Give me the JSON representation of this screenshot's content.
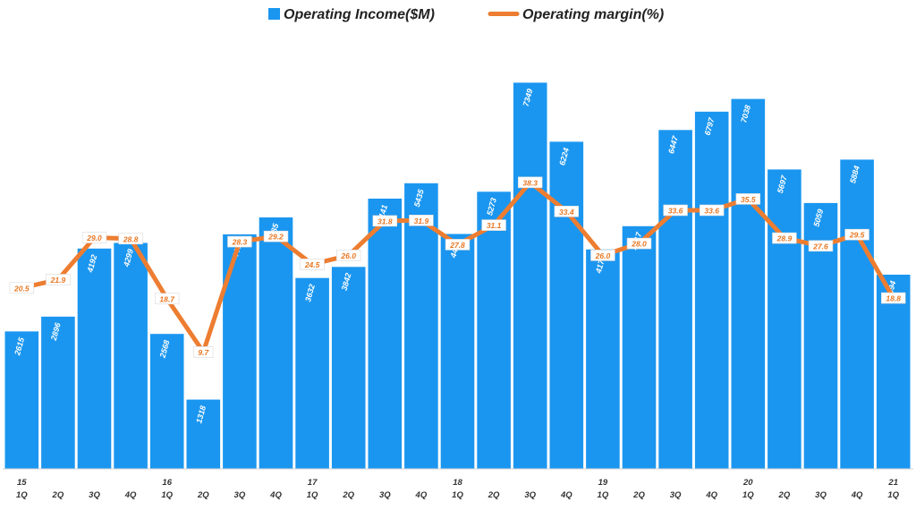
{
  "chart_data": {
    "type": "bar",
    "categories": [
      "1Q",
      "2Q",
      "3Q",
      "4Q",
      "1Q",
      "2Q",
      "3Q",
      "4Q",
      "1Q",
      "2Q",
      "3Q",
      "4Q",
      "1Q",
      "2Q",
      "3Q",
      "4Q",
      "1Q",
      "2Q",
      "3Q",
      "4Q",
      "1Q",
      "2Q",
      "3Q",
      "4Q",
      "1Q"
    ],
    "year_labels": [
      "15",
      "",
      "",
      "",
      "16",
      "",
      "",
      "",
      "17",
      "",
      "",
      "",
      "18",
      "",
      "",
      "",
      "19",
      "",
      "",
      "",
      "20",
      "",
      "",
      "",
      "21"
    ],
    "series": [
      {
        "name": "Operating Income($M)",
        "type": "bar",
        "color": "#1a96f0",
        "values": [
          2615,
          2896,
          4192,
          4299,
          2568,
          1318,
          4462,
          4785,
          3632,
          3842,
          5141,
          5435,
          4470,
          5273,
          7349,
          6224,
          4174,
          4617,
          6447,
          6797,
          7038,
          5697,
          5059,
          5884,
          3694
        ],
        "labels": [
          "2615",
          "2896",
          "4192",
          "4299",
          "2568",
          "1318",
          "4462",
          "4785",
          "3632",
          "3842",
          "5141",
          "5435",
          "4470",
          "5273",
          "7349",
          "6224",
          "4174",
          "4617",
          "6447",
          "6797",
          "7038",
          "5697",
          "5059",
          "5884",
          "3694"
        ]
      },
      {
        "name": "Operating margin(%)",
        "type": "line",
        "color": "#ed7d31",
        "values": [
          20.5,
          21.9,
          29.0,
          28.8,
          18.7,
          9.7,
          28.3,
          29.2,
          24.5,
          26.0,
          31.8,
          31.9,
          27.8,
          31.1,
          38.3,
          33.4,
          26.0,
          28.0,
          33.6,
          33.6,
          35.5,
          28.9,
          27.6,
          29.5,
          18.8
        ],
        "labels": [
          "20.5",
          "21.9",
          "29.0",
          "28.8",
          "18.7",
          "9.7",
          "28.3",
          "29.2",
          "24.5",
          "26.0",
          "31.8",
          "31.9",
          "27.8",
          "31.1",
          "38.3",
          "33.4",
          "26.0",
          "28.0",
          "33.6",
          "33.6",
          "35.5",
          "28.9",
          "27.6",
          "29.5",
          "18.8"
        ]
      }
    ],
    "title": "",
    "xlabel": "",
    "ylabel": "",
    "ylim_bars": [
      0,
      7900
    ],
    "ylim_margin": [
      -10,
      60
    ],
    "grid": false,
    "legend_position": "top-center"
  }
}
